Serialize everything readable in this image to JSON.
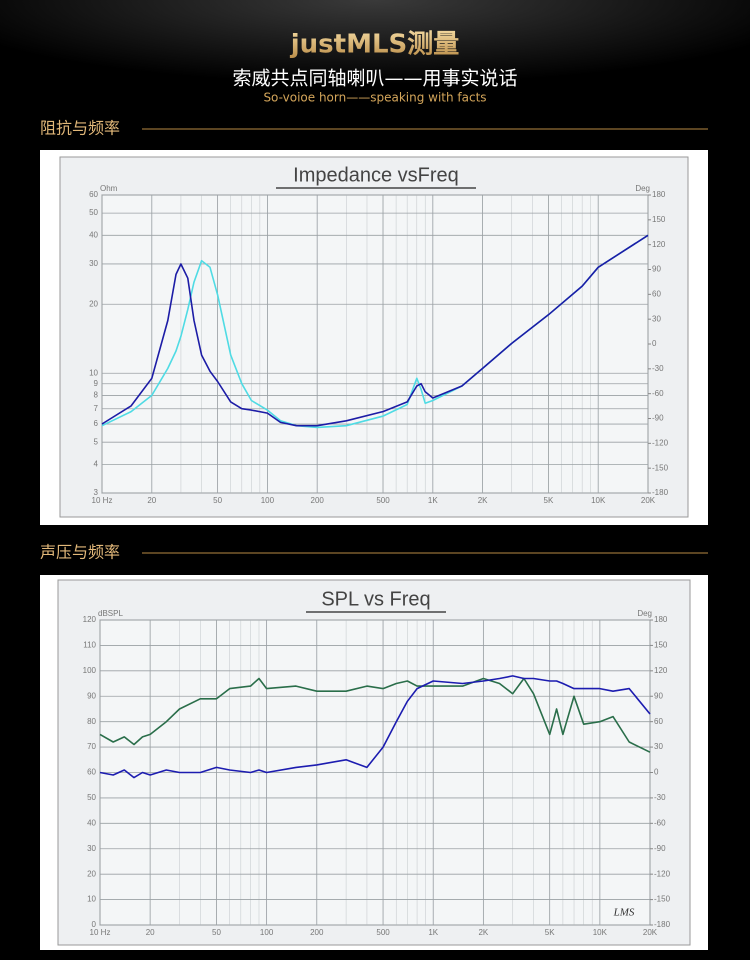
{
  "header": {
    "title": "justMLS测量",
    "subtitle": "索威共点同轴喇叭——用事实说话",
    "subtitle_en": "So-voioe horn——speaking with facts"
  },
  "sections": [
    "阻抗与频率",
    "声压与频率"
  ],
  "chart_data": [
    {
      "type": "line",
      "title": "Impedance vsFreq",
      "ylabel": "Ohm",
      "y2label": "Deg",
      "xscale": "log",
      "yscale": "log",
      "grid": true,
      "xlim": [
        10,
        20000
      ],
      "xticks": [
        {
          "value": 10,
          "label": "10 Hz"
        },
        20,
        50,
        100,
        200,
        500,
        {
          "value": 1000,
          "label": "1K"
        },
        {
          "value": 2000,
          "label": "2K"
        },
        {
          "value": 5000,
          "label": "5K"
        },
        {
          "value": 10000,
          "label": "10K"
        },
        {
          "value": 20000,
          "label": "20K"
        }
      ],
      "ylim": [
        3,
        60
      ],
      "yticks": [
        3,
        4,
        5,
        6,
        7,
        8,
        9,
        10,
        20,
        30,
        40,
        50,
        60
      ],
      "y2lim": [
        -180,
        180
      ],
      "y2ticks": [
        -180,
        -150,
        -120,
        -90,
        -60,
        -30,
        0,
        30,
        60,
        90,
        120,
        150,
        180
      ],
      "x": [
        10,
        15,
        20,
        25,
        28,
        30,
        33,
        36,
        40,
        45,
        50,
        60,
        70,
        80,
        100,
        120,
        150,
        200,
        300,
        500,
        700,
        800,
        850,
        900,
        1000,
        1500,
        2000,
        3000,
        5000,
        8000,
        10000,
        20000
      ],
      "series": [
        {
          "color": "#4fdbe4",
          "values": [
            5.9,
            6.8,
            8.0,
            10.5,
            12.5,
            14.5,
            19,
            25,
            31,
            29,
            22,
            12,
            9,
            7.6,
            6.9,
            6.2,
            5.9,
            5.8,
            5.9,
            6.5,
            7.3,
            9.5,
            8.5,
            7.4,
            7.6,
            8.8,
            10.5,
            13.5,
            18,
            24,
            29,
            40
          ]
        },
        {
          "color": "#1c1ca6",
          "values": [
            6.0,
            7.2,
            9.5,
            17,
            27,
            30,
            26,
            17,
            12,
            10.2,
            9.2,
            7.5,
            7.0,
            6.9,
            6.7,
            6.1,
            5.9,
            5.9,
            6.2,
            6.8,
            7.5,
            8.8,
            9.0,
            8.3,
            7.8,
            8.8,
            10.5,
            13.5,
            18,
            24,
            29,
            40
          ]
        }
      ]
    },
    {
      "type": "line",
      "title": "SPL vs Freq",
      "ylabel": "dBSPL",
      "y2label": "Deg",
      "annotation": "LMS",
      "xscale": "log",
      "yscale": "linear",
      "grid": true,
      "xlim": [
        10,
        20000
      ],
      "xticks": [
        {
          "value": 10,
          "label": "10 Hz"
        },
        20,
        50,
        100,
        200,
        500,
        {
          "value": 1000,
          "label": "1K"
        },
        {
          "value": 2000,
          "label": "2K"
        },
        {
          "value": 5000,
          "label": "5K"
        },
        {
          "value": 10000,
          "label": "10K"
        },
        {
          "value": 20000,
          "label": "20K"
        }
      ],
      "ylim": [
        0,
        120
      ],
      "yticks": [
        0,
        10,
        20,
        30,
        40,
        50,
        60,
        70,
        80,
        90,
        100,
        110,
        120
      ],
      "y2lim": [
        -180,
        180
      ],
      "y2ticks": [
        -180,
        -150,
        -120,
        -90,
        -60,
        -30,
        0,
        30,
        60,
        90,
        120,
        150,
        180
      ],
      "x": [
        10,
        12,
        14,
        16,
        18,
        20,
        25,
        30,
        40,
        50,
        60,
        80,
        90,
        100,
        150,
        200,
        300,
        400,
        500,
        600,
        700,
        800,
        1000,
        1500,
        2000,
        2500,
        3000,
        3500,
        4000,
        5000,
        5500,
        6000,
        7000,
        8000,
        10000,
        12000,
        15000,
        20000
      ],
      "series": [
        {
          "color": "#2a6e4a",
          "values": [
            75,
            72,
            74,
            71,
            74,
            75,
            80,
            85,
            89,
            89,
            93,
            94,
            97,
            93,
            94,
            92,
            92,
            94,
            93,
            95,
            96,
            94,
            94,
            94,
            97,
            95,
            91,
            97,
            91,
            75,
            85,
            75,
            90,
            79,
            80,
            82,
            72,
            68
          ]
        },
        {
          "color": "#1c1cb0",
          "values": [
            60,
            59,
            61,
            58,
            60,
            59,
            61,
            60,
            60,
            62,
            61,
            60,
            61,
            60,
            62,
            63,
            65,
            62,
            70,
            80,
            88,
            93,
            96,
            95,
            96,
            97,
            98,
            97,
            97,
            96,
            96,
            95,
            93,
            93,
            93,
            92,
            93,
            83
          ]
        }
      ]
    }
  ]
}
